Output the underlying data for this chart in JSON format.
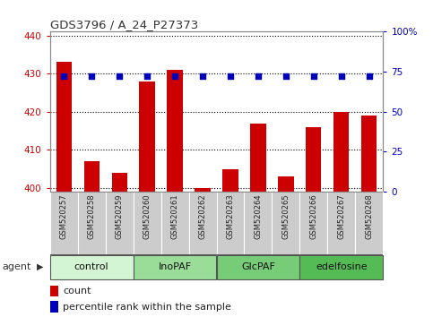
{
  "title": "GDS3796 / A_24_P27373",
  "samples": [
    "GSM520257",
    "GSM520258",
    "GSM520259",
    "GSM520260",
    "GSM520261",
    "GSM520262",
    "GSM520263",
    "GSM520264",
    "GSM520265",
    "GSM520266",
    "GSM520267",
    "GSM520268"
  ],
  "counts": [
    433,
    407,
    404,
    428,
    431,
    400,
    405,
    417,
    403,
    416,
    420,
    419
  ],
  "percentiles": [
    72,
    72,
    72,
    72,
    72,
    72,
    72,
    72,
    72,
    72,
    72,
    72
  ],
  "ylim_left": [
    399,
    441
  ],
  "ylim_right": [
    0,
    100
  ],
  "yticks_left": [
    400,
    410,
    420,
    430,
    440
  ],
  "yticks_right": [
    0,
    25,
    50,
    75,
    100
  ],
  "ytick_labels_right": [
    "0",
    "25",
    "50",
    "75",
    "100%"
  ],
  "groups": [
    {
      "label": "control",
      "start": 0,
      "end": 2,
      "color": "#d4f5d4"
    },
    {
      "label": "InoPAF",
      "start": 3,
      "end": 5,
      "color": "#99dd99"
    },
    {
      "label": "GlcPAF",
      "start": 6,
      "end": 8,
      "color": "#77cc77"
    },
    {
      "label": "edelfosine",
      "start": 9,
      "end": 11,
      "color": "#55bb55"
    }
  ],
  "bar_color": "#cc0000",
  "dot_color": "#0000bb",
  "grid_color": "#000000",
  "sample_bg_color": "#cccccc",
  "left_axis_color": "#cc0000",
  "right_axis_color": "#0000bb",
  "agent_label": "agent",
  "legend_count_label": "count",
  "legend_pct_label": "percentile rank within the sample",
  "fig_width": 4.83,
  "fig_height": 3.54,
  "dpi": 100
}
